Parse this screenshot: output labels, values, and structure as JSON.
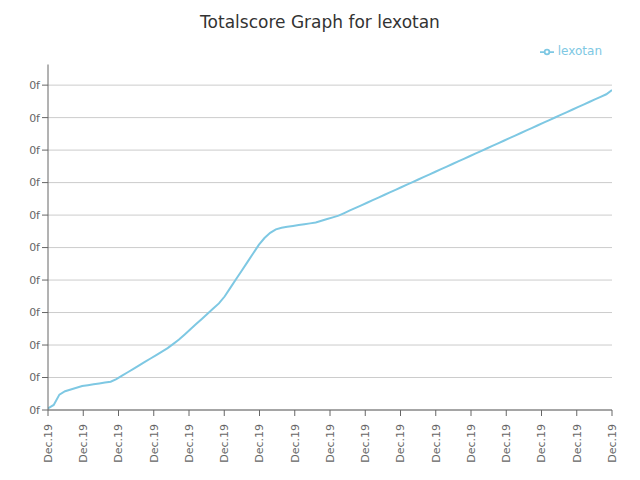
{
  "chart_data": {
    "type": "line",
    "title": "Totalscore Graph for lexotan",
    "x": [
      0,
      1,
      2,
      3,
      4,
      5,
      6,
      7,
      8,
      9,
      10,
      11,
      12,
      13,
      14,
      15,
      16,
      17,
      18,
      19,
      20,
      21,
      22,
      23,
      24,
      25,
      26,
      27,
      28,
      29,
      30,
      31,
      32,
      33,
      34,
      35,
      36,
      37,
      38,
      39,
      40,
      41,
      42,
      43,
      44,
      45,
      46,
      47,
      48,
      49,
      50,
      51,
      52,
      53,
      54,
      55,
      56,
      57,
      58,
      59,
      60,
      61,
      62,
      63,
      64,
      65,
      66,
      67,
      68,
      69,
      70,
      71,
      72,
      73,
      74,
      75,
      76,
      77,
      78,
      79,
      80,
      81,
      82,
      83,
      84,
      85,
      86,
      87,
      88,
      89,
      90,
      91,
      92,
      93,
      94,
      95,
      96,
      97,
      98,
      99
    ],
    "series": [
      {
        "name": "lexotan",
        "color": "#7ec8e3",
        "values": [
          0,
          0.2,
          0.8,
          1.0,
          1.1,
          1.2,
          1.3,
          1.35,
          1.4,
          1.45,
          1.5,
          1.55,
          1.7,
          1.9,
          2.1,
          2.3,
          2.5,
          2.7,
          2.9,
          3.1,
          3.3,
          3.5,
          3.75,
          4.0,
          4.3,
          4.6,
          4.9,
          5.2,
          5.5,
          5.8,
          6.1,
          6.5,
          7.0,
          7.5,
          8.0,
          8.5,
          9.0,
          9.5,
          9.9,
          10.2,
          10.4,
          10.5,
          10.55,
          10.6,
          10.65,
          10.7,
          10.75,
          10.8,
          10.9,
          11.0,
          11.1,
          11.2,
          11.35,
          11.5,
          11.65,
          11.8,
          11.95,
          12.1,
          12.25,
          12.4,
          12.55,
          12.7,
          12.85,
          13.0,
          13.15,
          13.3,
          13.45,
          13.6,
          13.75,
          13.9,
          14.05,
          14.2,
          14.35,
          14.5,
          14.65,
          14.8,
          14.95,
          15.1,
          15.25,
          15.4,
          15.55,
          15.7,
          15.85,
          16.0,
          16.15,
          16.3,
          16.45,
          16.6,
          16.75,
          16.9,
          17.05,
          17.2,
          17.35,
          17.5,
          17.65,
          17.8,
          17.95,
          18.1,
          18.25,
          18.5
        ]
      }
    ],
    "xlim": [
      0,
      99
    ],
    "xticks": [
      {
        "value": 0,
        "label": "Dec.19"
      },
      {
        "value": 6.1875,
        "label": "Dec.19"
      },
      {
        "value": 12.375,
        "label": "Dec.19"
      },
      {
        "value": 18.5625,
        "label": "Dec.19"
      },
      {
        "value": 24.75,
        "label": "Dec.19"
      },
      {
        "value": 30.9375,
        "label": "Dec.19"
      },
      {
        "value": 37.125,
        "label": "Dec.19"
      },
      {
        "value": 43.3125,
        "label": "Dec.19"
      },
      {
        "value": 49.5,
        "label": "Dec.19"
      },
      {
        "value": 55.6875,
        "label": "Dec.19"
      },
      {
        "value": 61.875,
        "label": "Dec.19"
      },
      {
        "value": 68.0625,
        "label": "Dec.19"
      },
      {
        "value": 74.25,
        "label": "Dec.19"
      },
      {
        "value": 80.4375,
        "label": "Dec.19"
      },
      {
        "value": 86.625,
        "label": "Dec.19"
      },
      {
        "value": 92.8125,
        "label": "Dec.19"
      },
      {
        "value": 99,
        "label": "Dec.19"
      }
    ],
    "ylim": [
      -0.0925,
      19.98
    ],
    "yticks": [
      {
        "value": -0.0925,
        "label": "0f"
      },
      {
        "value": 1.79487,
        "label": "0f"
      },
      {
        "value": 3.68224,
        "label": "0f"
      },
      {
        "value": 5.56961,
        "label": "0f"
      },
      {
        "value": 7.45698,
        "label": "0f"
      },
      {
        "value": 9.34435,
        "label": "0f"
      },
      {
        "value": 11.23172,
        "label": "0f"
      },
      {
        "value": 13.11909,
        "label": "0f"
      },
      {
        "value": 15.00646,
        "label": "0f"
      },
      {
        "value": 16.89383,
        "label": "0f"
      },
      {
        "value": 18.7812,
        "label": "0f"
      }
    ],
    "grid": true,
    "legend": "upper right"
  }
}
